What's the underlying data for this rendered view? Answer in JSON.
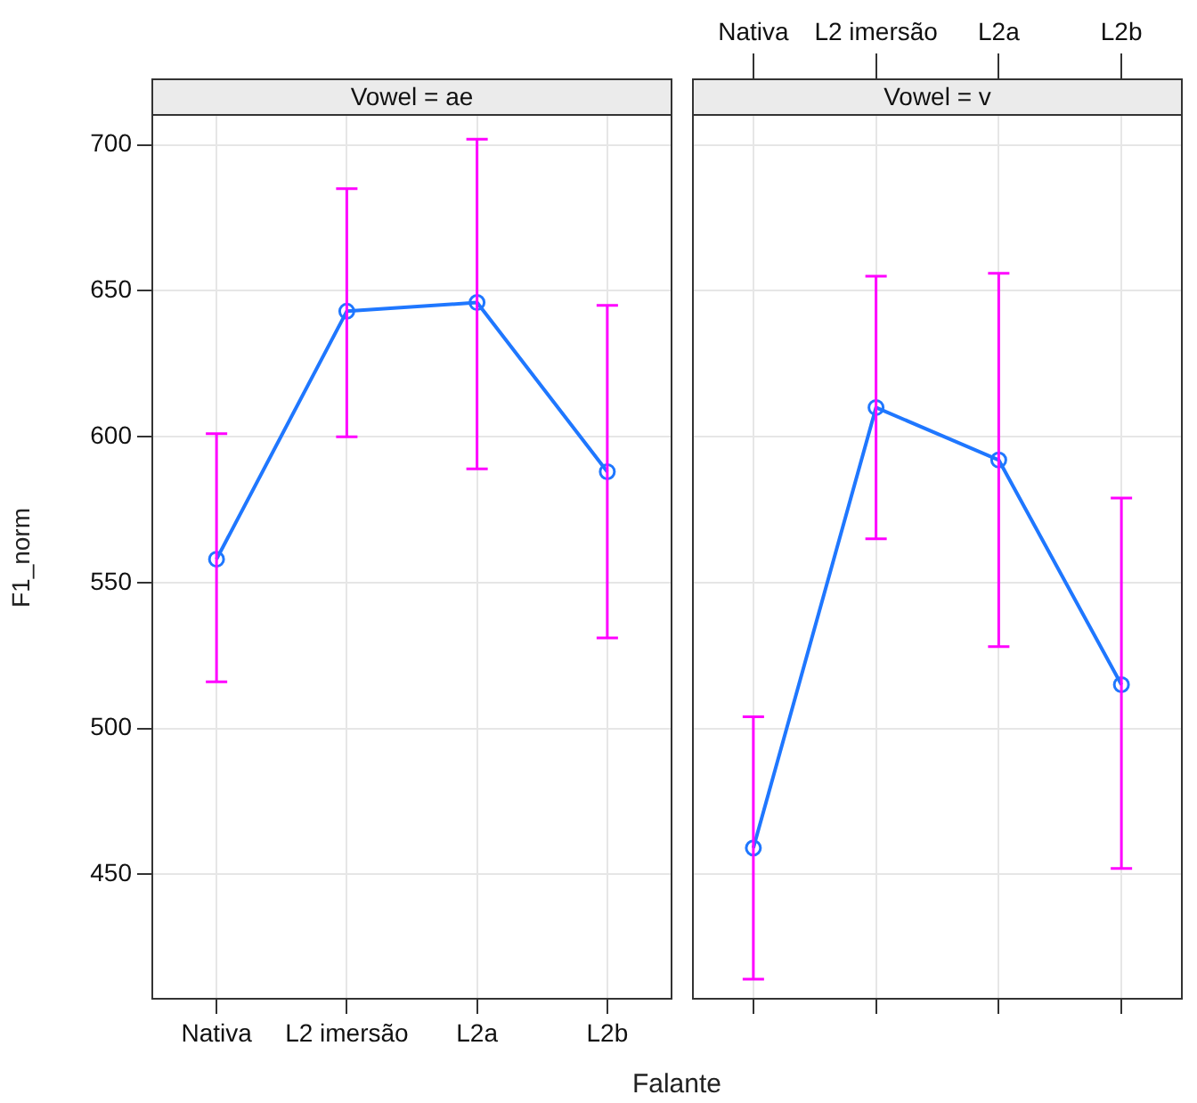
{
  "chart_data": [
    {
      "type": "line",
      "title": "Vowel = ae",
      "xlabel": "Falante",
      "ylabel": "F1_norm",
      "categories": [
        "Nativa",
        "L2 imersão",
        "L2a",
        "L2b"
      ],
      "series": [
        {
          "color": "#1f77ff",
          "values": [
            558,
            643,
            646,
            588
          ],
          "errors": [
            [
              516,
              601
            ],
            [
              600,
              685
            ],
            [
              589,
              702
            ],
            [
              531,
              645
            ]
          ]
        }
      ],
      "ylim": [
        407,
        710
      ],
      "yticks": [
        450,
        500,
        550,
        600,
        650,
        700
      ],
      "grid": true,
      "legend": false,
      "marker": "circle",
      "line_style": "solid"
    },
    {
      "type": "line",
      "title": "Vowel = v",
      "categories": [
        "Nativa",
        "L2 imersão",
        "L2a",
        "L2b"
      ],
      "series": [
        {
          "color": "#1f77ff",
          "values": [
            459,
            610,
            592,
            515
          ],
          "errors": [
            [
              414,
              504
            ],
            [
              565,
              655
            ],
            [
              528,
              656
            ],
            [
              452,
              579
            ]
          ]
        }
      ],
      "ylim": [
        407,
        710
      ],
      "yticks": [
        450,
        500,
        550,
        600,
        650,
        700
      ],
      "grid": true,
      "legend": false,
      "marker": "circle",
      "line_style": "solid",
      "tick_labels": "x"
    }
  ]
}
